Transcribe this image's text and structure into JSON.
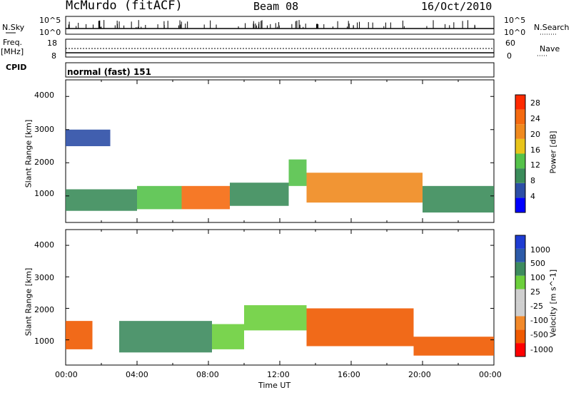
{
  "header": {
    "station": "McMurdo (fitACF)",
    "beam": "Beam 08",
    "date": "16/Oct/2010"
  },
  "strips": {
    "nsky_label": "N.Sky",
    "nsky_ticks": [
      "10^5",
      "10^0"
    ],
    "nsearch_label": "N.Search",
    "nsearch_ticks": [
      "10^5",
      "10^0"
    ],
    "freq_label_1": "Freq.",
    "freq_label_2": "[MHz]",
    "freq_ticks": [
      "18",
      "8"
    ],
    "nave_label": "Nave",
    "nave_ticks": [
      "60",
      "0"
    ],
    "cpid_label": "CPID",
    "cpid_text": "normal (fast) 151"
  },
  "colors": {
    "power": [
      "#0000ff",
      "#2c4ea6",
      "#3b8c5a",
      "#55c24a",
      "#e8c41a",
      "#f08a1e",
      "#f56a10",
      "#ff2a00"
    ],
    "velocity": [
      "#ff0000",
      "#f05a00",
      "#f2892a",
      "#cfcfcf",
      "#cfcfcf",
      "#6ccf3c",
      "#3d8b5e",
      "#2c5aa8",
      "#1e3cd2"
    ]
  },
  "chart_data": [
    {
      "type": "heatmap",
      "title": "",
      "quantity": "Power",
      "xlabel": "",
      "ylabel": "Slant Range [km]",
      "ylim": [
        200,
        4500
      ],
      "yticks": [
        "1000",
        "2000",
        "3000",
        "4000"
      ],
      "xlim_hours": [
        0,
        24
      ],
      "colorbar": {
        "label": "Power [dB]",
        "ticks": [
          "4",
          "8",
          "12",
          "16",
          "20",
          "24",
          "28"
        ],
        "range": [
          0,
          32
        ]
      },
      "regions": [
        {
          "t0": 0.0,
          "t1": 4.0,
          "r0": 550,
          "r1": 1200,
          "level": 8
        },
        {
          "t0": 4.0,
          "t1": 6.5,
          "r0": 600,
          "r1": 1300,
          "level": 12
        },
        {
          "t0": 6.5,
          "t1": 9.2,
          "r0": 600,
          "r1": 1300,
          "level": 26
        },
        {
          "t0": 9.2,
          "t1": 12.5,
          "r0": 700,
          "r1": 1400,
          "level": 10
        },
        {
          "t0": 12.5,
          "t1": 13.5,
          "r0": 1300,
          "r1": 2100,
          "level": 12
        },
        {
          "t0": 13.5,
          "t1": 20.0,
          "r0": 800,
          "r1": 1700,
          "level": 20
        },
        {
          "t0": 20.0,
          "t1": 24.0,
          "r0": 500,
          "r1": 1300,
          "level": 10
        },
        {
          "t0": 0.0,
          "t1": 2.5,
          "r0": 2500,
          "r1": 3000,
          "level": 6
        }
      ]
    },
    {
      "type": "heatmap",
      "title": "",
      "quantity": "Velocity",
      "xlabel": "Time UT",
      "ylabel": "Slant Range [km]",
      "ylim": [
        200,
        4500
      ],
      "yticks": [
        "1000",
        "2000",
        "3000",
        "4000"
      ],
      "xticks": [
        "00:00",
        "04:00",
        "08:00",
        "12:00",
        "16:00",
        "20:00",
        "00:00"
      ],
      "xlim_hours": [
        0,
        24
      ],
      "colorbar": {
        "label": "Velocity [m s^-1]",
        "ticks": [
          "1000",
          "500",
          "100",
          "25",
          "-25",
          "-100",
          "-500",
          "-1000"
        ]
      },
      "regions": [
        {
          "t0": 0.0,
          "t1": 1.5,
          "r0": 700,
          "r1": 1600,
          "velocity": -100
        },
        {
          "t0": 3.0,
          "t1": 8.2,
          "r0": 600,
          "r1": 1600,
          "velocity": 300
        },
        {
          "t0": 8.2,
          "t1": 10.0,
          "r0": 700,
          "r1": 1500,
          "velocity": 80
        },
        {
          "t0": 10.0,
          "t1": 13.5,
          "r0": 1300,
          "r1": 2100,
          "velocity": 80
        },
        {
          "t0": 13.5,
          "t1": 19.5,
          "r0": 800,
          "r1": 2000,
          "velocity": -100
        },
        {
          "t0": 19.5,
          "t1": 24.0,
          "r0": 500,
          "r1": 1100,
          "velocity": -100
        }
      ]
    }
  ]
}
